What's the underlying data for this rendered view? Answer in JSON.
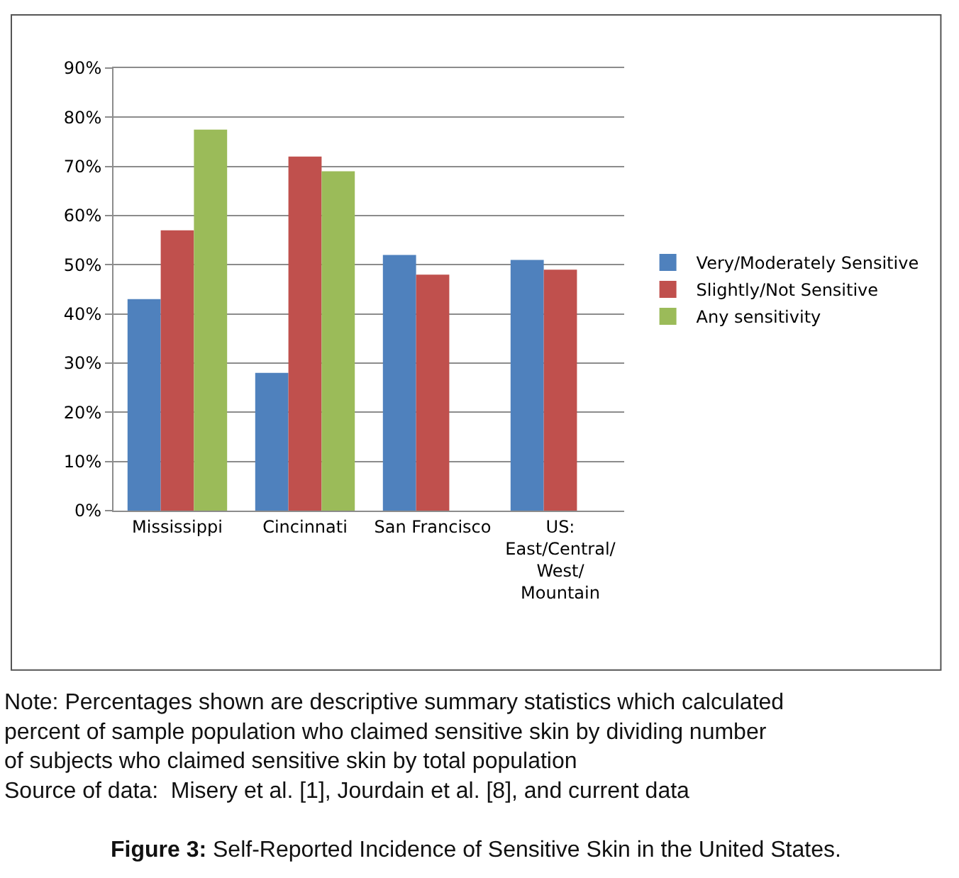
{
  "chart_data": {
    "type": "bar",
    "categories": [
      "Mississippi",
      "Cincinnati",
      "San Francisco",
      "US:\nEast/Central/\nWest/\nMountain"
    ],
    "series": [
      {
        "name": "Very/Moderately Sensitive",
        "color": "#4f81bd",
        "values": [
          43,
          28,
          52,
          51
        ]
      },
      {
        "name": "Slightly/Not Sensitive",
        "color": "#c0504d",
        "values": [
          57,
          72,
          48,
          49
        ]
      },
      {
        "name": "Any sensitivity",
        "color": "#9bbb59",
        "values": [
          77.5,
          69,
          null,
          null
        ]
      }
    ],
    "ylim": [
      0,
      90
    ],
    "yticks": [
      {
        "value": 0,
        "label": "0%"
      },
      {
        "value": 10,
        "label": "10%"
      },
      {
        "value": 20,
        "label": "20%"
      },
      {
        "value": 30,
        "label": "30%"
      },
      {
        "value": 40,
        "label": "40%"
      },
      {
        "value": 50,
        "label": "50%"
      },
      {
        "value": 60,
        "label": "60%"
      },
      {
        "value": 70,
        "label": "70%"
      },
      {
        "value": 80,
        "label": "80%"
      },
      {
        "value": 90,
        "label": "90%"
      }
    ],
    "grid": "y",
    "legend": "right",
    "annotations": [
      "Note: Percentages shown are descriptive summary statistics which calculated\npercent of sample population who claimed sensitive skin by dividing number\nof subjects who claimed sensitive skin by total population\nSource of data:  Misery et al. [1], Jourdain et al. [8], and current data",
      "Figure 3: Self-Reported Incidence of Sensitive Skin in the United States."
    ]
  }
}
